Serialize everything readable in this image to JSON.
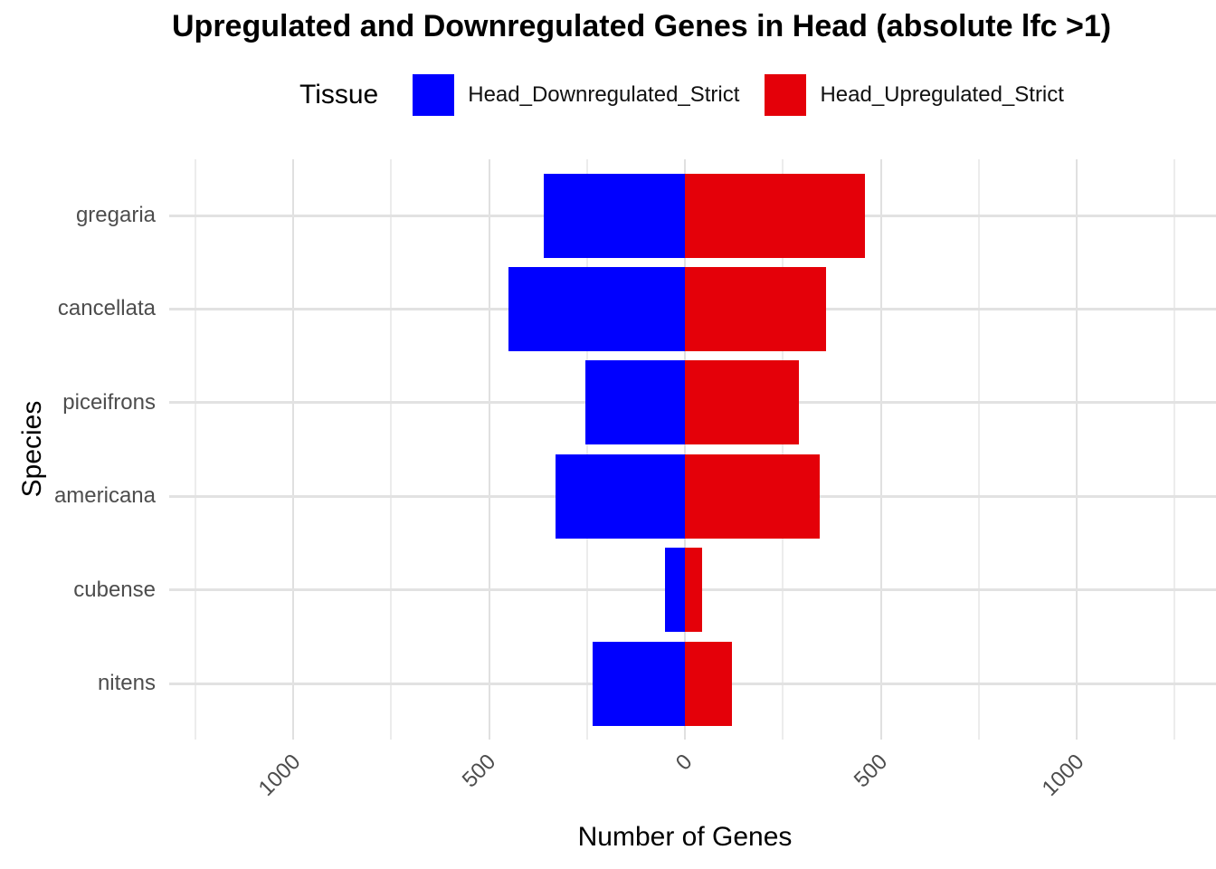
{
  "title": "Upregulated and Downregulated Genes in Head (absolute lfc >1)",
  "legend": {
    "title": "Tissue",
    "items": [
      {
        "label": "Head_Downregulated_Strict",
        "color": "#0000FF"
      },
      {
        "label": "Head_Upregulated_Strict",
        "color": "#E40009"
      }
    ]
  },
  "axes": {
    "x_label": "Number of Genes",
    "y_label": "Species"
  },
  "chart_data": {
    "type": "bar",
    "orientation": "horizontal-diverging",
    "title": "Upregulated and Downregulated Genes in Head (absolute lfc >1)",
    "xlabel": "Number of Genes",
    "ylabel": "Species",
    "categories": [
      "gregaria",
      "cancellata",
      "piceifrons",
      "americana",
      "cubense",
      "nitens"
    ],
    "series": [
      {
        "name": "Head_Downregulated_Strict",
        "color": "#0000FF",
        "direction": "negative",
        "values": [
          360,
          450,
          255,
          330,
          50,
          235
        ]
      },
      {
        "name": "Head_Upregulated_Strict",
        "color": "#E40009",
        "direction": "positive",
        "values": [
          460,
          360,
          290,
          345,
          45,
          120
        ]
      }
    ],
    "xlim": [
      -1300,
      1300
    ],
    "x_ticks": [
      {
        "value": -1000,
        "label": "1000"
      },
      {
        "value": -500,
        "label": "500"
      },
      {
        "value": 0,
        "label": "0"
      },
      {
        "value": 500,
        "label": "500"
      },
      {
        "value": 1000,
        "label": "1000"
      }
    ],
    "minor_gridlines": [
      -1250,
      -750,
      -250,
      250,
      750,
      1250
    ],
    "grid": "on",
    "legend_position": "top",
    "background": "#FFFFFF",
    "gridline_color": "#E2E2E2",
    "tick_label_color": "#4D4D4D"
  }
}
